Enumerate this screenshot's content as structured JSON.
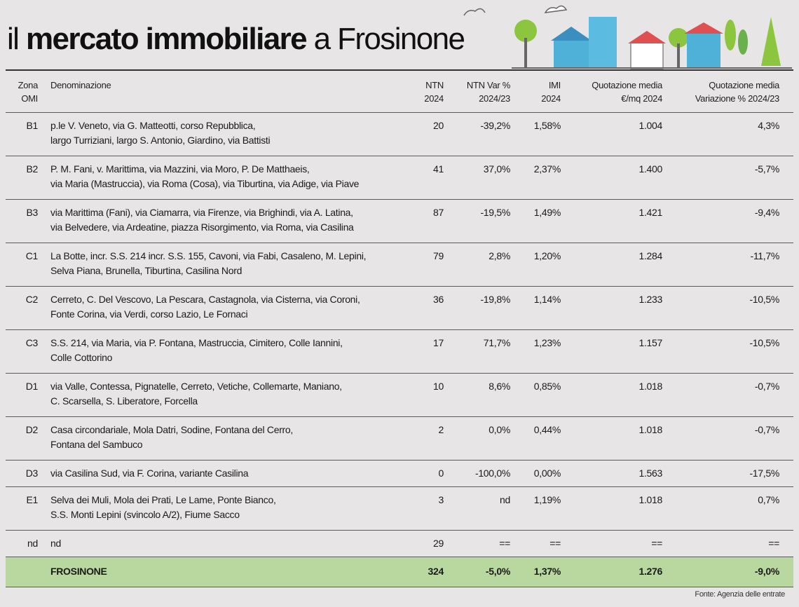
{
  "header": {
    "title_parts": [
      "il",
      "mercato immobiliare",
      "a Frosinone"
    ]
  },
  "table": {
    "headers": [
      [
        "Zona",
        "OMI"
      ],
      [
        "Denominazione"
      ],
      [
        "NTN",
        "2024"
      ],
      [
        "NTN Var %",
        "2024/23"
      ],
      [
        "IMI",
        "2024"
      ],
      [
        "Quotazione media",
        "€/mq 2024"
      ],
      [
        "Quotazione media",
        "Variazione % 2024/23"
      ]
    ],
    "rows": [
      [
        "B1",
        [
          "p.le V. Veneto, via G. Matteotti, corso Repubblica,",
          "largo Turriziani, largo S. Antonio, Giardino, via Battisti"
        ],
        "20",
        "-39,2%",
        "1,58%",
        "1.004",
        "4,3%"
      ],
      [
        "B2",
        [
          "P. M. Fani, v. Marittima, via Mazzini, via Moro, P. De Matthaeis,",
          "via Maria (Mastruccia), via Roma (Cosa), via Tiburtina, via Adige, via Piave"
        ],
        "41",
        "37,0%",
        "2,37%",
        "1.400",
        "-5,7%"
      ],
      [
        "B3",
        [
          "via Marittima (Fani), via Ciamarra, via Firenze, via Brighindi, via A. Latina,",
          "via Belvedere, via Ardeatine, piazza Risorgimento, via Roma, via Casilina"
        ],
        "87",
        "-19,5%",
        "1,49%",
        "1.421",
        "-9,4%"
      ],
      [
        "C1",
        [
          "La Botte, incr. S.S. 214 incr. S.S. 155, Cavoni, via Fabi, Casaleno, M. Lepini,",
          "Selva Piana, Brunella, Tiburtina, Casilina Nord"
        ],
        "79",
        "2,8%",
        "1,20%",
        "1.284",
        "-11,7%"
      ],
      [
        "C2",
        [
          "Cerreto, C. Del Vescovo, La Pescara, Castagnola, via Cisterna, via Coroni,",
          "Fonte Corina, via Verdi, corso Lazio, Le Fornaci"
        ],
        "36",
        "-19,8%",
        "1,14%",
        "1.233",
        "-10,5%"
      ],
      [
        "C3",
        [
          "S.S. 214, via Maria, via P. Fontana, Mastruccia, Cimitero, Colle Iannini,",
          "Colle Cottorino"
        ],
        "17",
        "71,7%",
        "1,23%",
        "1.157",
        "-10,5%"
      ],
      [
        "D1",
        [
          "via Valle, Contessa, Pignatelle, Cerreto, Vetiche, Collemarte, Maniano,",
          "C. Scarsella, S. Liberatore, Forcella"
        ],
        "10",
        "8,6%",
        "0,85%",
        "1.018",
        "-0,7%"
      ],
      [
        "D2",
        [
          "Casa circondariale, Mola Datri, Sodine, Fontana del Cerro,",
          "Fontana del Sambuco"
        ],
        "2",
        "0,0%",
        "0,44%",
        "1.018",
        "-0,7%"
      ],
      [
        "D3",
        [
          "via Casilina Sud, via F. Corina, variante Casilina"
        ],
        "0",
        "-100,0%",
        "0,00%",
        "1.563",
        "-17,5%"
      ],
      [
        "E1",
        [
          "Selva dei Muli, Mola dei Prati, Le Lame, Ponte Bianco,",
          "S.S. Monti Lepini (svincolo A/2), Fiume Sacco"
        ],
        "3",
        "nd",
        "1,19%",
        "1.018",
        "0,7%"
      ],
      [
        "nd",
        [
          "nd"
        ],
        "29",
        "==",
        "==",
        "==",
        "=="
      ]
    ],
    "total": [
      "FROSINONE",
      "324",
      "-5,0%",
      "1,37%",
      "1.276",
      "-9,0%"
    ]
  },
  "footer": {
    "source": "Fonte: Agenzia delle entrate"
  }
}
